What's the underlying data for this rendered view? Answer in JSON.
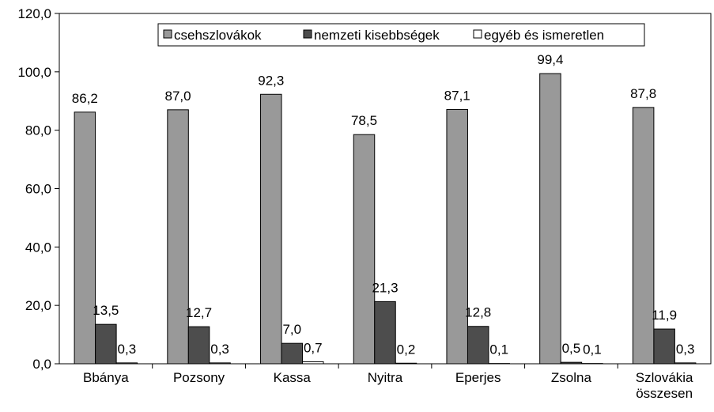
{
  "chart_data": {
    "type": "bar",
    "categories": [
      "Bbánya",
      "Pozsony",
      "Kassa",
      "Nyitra",
      "Eperjes",
      "Zsolna",
      "Szlovákia összesen"
    ],
    "series": [
      {
        "name": "csehszlovákok",
        "color": "#999999",
        "values": [
          86.2,
          87.0,
          92.3,
          78.5,
          87.1,
          99.4,
          87.8
        ],
        "value_labels": [
          "86,2",
          "87,0",
          "92,3",
          "78,5",
          "87,1",
          "99,4",
          "87,8"
        ]
      },
      {
        "name": "nemzeti kisebbségek",
        "color": "#4d4d4d",
        "values": [
          13.5,
          12.7,
          7.0,
          21.3,
          12.8,
          0.5,
          11.9
        ],
        "value_labels": [
          "13,5",
          "12,7",
          "7,0",
          "21,3",
          "12,8",
          "0,5",
          "11,9"
        ]
      },
      {
        "name": "egyéb és ismeretlen",
        "color": "#ffffff",
        "values": [
          0.3,
          0.3,
          0.7,
          0.2,
          0.1,
          0.1,
          0.3
        ],
        "value_labels": [
          "0,3",
          "0,3",
          "0,7",
          "0,2",
          "0,1",
          "0,1",
          "0,3"
        ]
      }
    ],
    "ylim": [
      0,
      120
    ],
    "yticks": [
      {
        "value": 0,
        "label": "0,0"
      },
      {
        "value": 20,
        "label": "20,0"
      },
      {
        "value": 40,
        "label": "40,0"
      },
      {
        "value": 60,
        "label": "60,0"
      },
      {
        "value": 80,
        "label": "80,0"
      },
      {
        "value": 100,
        "label": "100,0"
      },
      {
        "value": 120,
        "label": "120,0"
      }
    ],
    "legend": "top"
  }
}
